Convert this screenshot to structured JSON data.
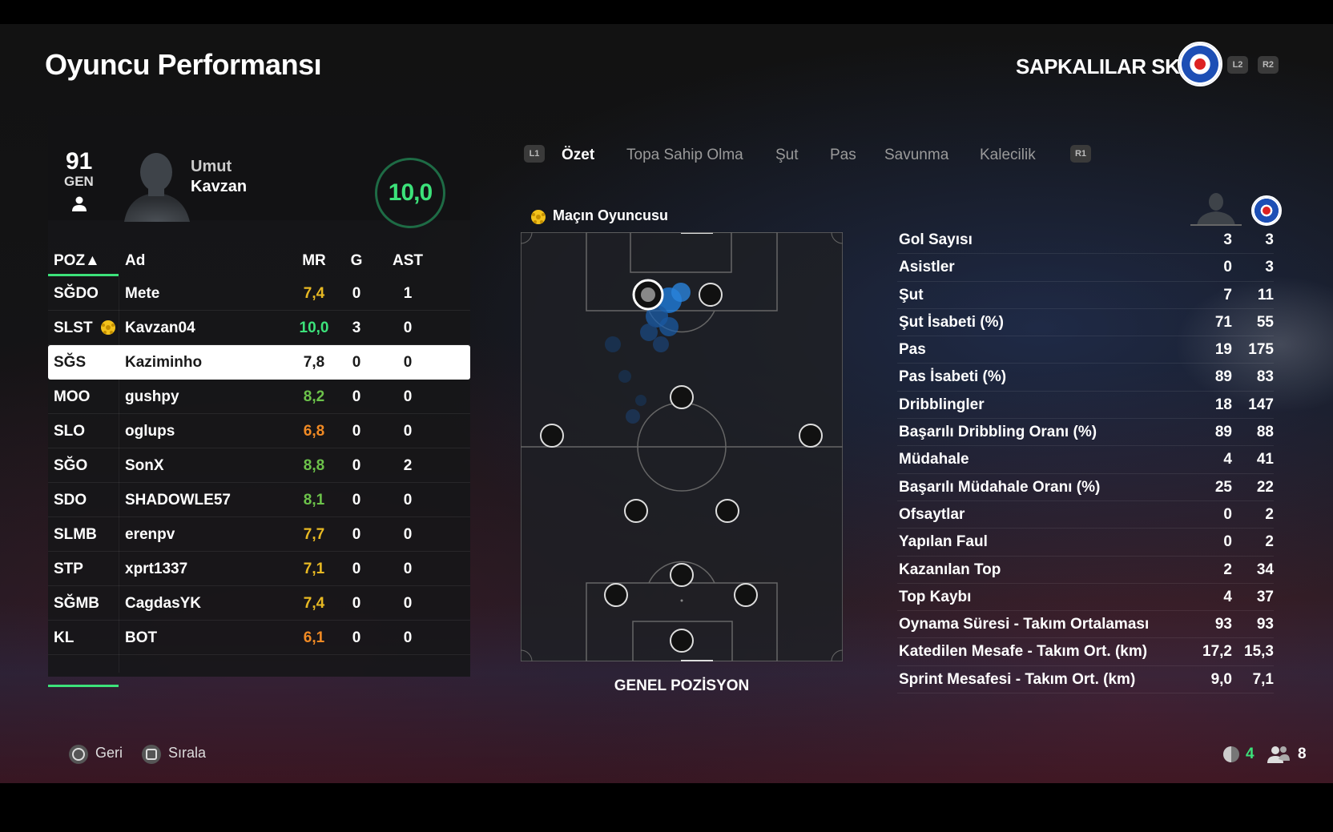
{
  "header": {
    "title": "Oyuncu Performansı",
    "club_name": "SAPKALILAR SK",
    "btn_l2": "L2",
    "btn_r2": "R2"
  },
  "player_card": {
    "gen_value": "91",
    "gen_label": "GEN",
    "first_name": "Umut",
    "last_name": "Kavzan",
    "rating": "10,0"
  },
  "table": {
    "headers": {
      "poz": "POZ▲",
      "ad": "Ad",
      "mr": "MR",
      "g": "G",
      "ast": "AST"
    },
    "rows": [
      {
        "pos": "SĞDO",
        "name": "Mete",
        "mr": "7,4",
        "mr_color": "#e8b923",
        "g": "0",
        "ast": "1",
        "motm": false,
        "selected": false
      },
      {
        "pos": "SLST",
        "name": "Kavzan04",
        "mr": "10,0",
        "mr_color": "#3ce27a",
        "g": "3",
        "ast": "0",
        "motm": true,
        "selected": false
      },
      {
        "pos": "SĞS",
        "name": "Kaziminho",
        "mr": "7,8",
        "mr_color": "#1a1a1a",
        "g": "0",
        "ast": "0",
        "motm": false,
        "selected": true
      },
      {
        "pos": "MOO",
        "name": "gushpy",
        "mr": "8,2",
        "mr_color": "#6cc24a",
        "g": "0",
        "ast": "0",
        "motm": false,
        "selected": false
      },
      {
        "pos": "SLO",
        "name": "oglups",
        "mr": "6,8",
        "mr_color": "#f08a24",
        "g": "0",
        "ast": "0",
        "motm": false,
        "selected": false
      },
      {
        "pos": "SĞO",
        "name": "SonX",
        "mr": "8,8",
        "mr_color": "#6cc24a",
        "g": "0",
        "ast": "2",
        "motm": false,
        "selected": false
      },
      {
        "pos": "SDO",
        "name": "SHADOWLE57",
        "mr": "8,1",
        "mr_color": "#6cc24a",
        "g": "0",
        "ast": "0",
        "motm": false,
        "selected": false
      },
      {
        "pos": "SLMB",
        "name": "erenpv",
        "mr": "7,7",
        "mr_color": "#e8b923",
        "g": "0",
        "ast": "0",
        "motm": false,
        "selected": false
      },
      {
        "pos": "STP",
        "name": "xprt1337",
        "mr": "7,1",
        "mr_color": "#e8b923",
        "g": "0",
        "ast": "0",
        "motm": false,
        "selected": false
      },
      {
        "pos": "SĞMB",
        "name": "CagdasYK",
        "mr": "7,4",
        "mr_color": "#e8b923",
        "g": "0",
        "ast": "0",
        "motm": false,
        "selected": false
      },
      {
        "pos": "KL",
        "name": "BOT",
        "mr": "6,1",
        "mr_color": "#f08a24",
        "g": "0",
        "ast": "0",
        "motm": false,
        "selected": false
      }
    ]
  },
  "tabs": {
    "left_btn": "L1",
    "right_btn": "R1",
    "items": [
      "Özet",
      "Topa Sahip Olma",
      "Şut",
      "Pas",
      "Savunma",
      "Kalecilik"
    ],
    "active_index": 0
  },
  "pitch": {
    "motm_label": "Maçın Oyuncusu",
    "caption": "GENEL POZİSYON"
  },
  "stats": [
    {
      "label": "Gol Sayısı",
      "player": "3",
      "team": "3"
    },
    {
      "label": "Asistler",
      "player": "0",
      "team": "3"
    },
    {
      "label": "Şut",
      "player": "7",
      "team": "11"
    },
    {
      "label": "Şut İsabeti (%)",
      "player": "71",
      "team": "55"
    },
    {
      "label": "Pas",
      "player": "19",
      "team": "175"
    },
    {
      "label": "Pas İsabeti (%)",
      "player": "89",
      "team": "83"
    },
    {
      "label": "Dribblingler",
      "player": "18",
      "team": "147"
    },
    {
      "label": "Başarılı Dribbling Oranı (%)",
      "player": "89",
      "team": "88"
    },
    {
      "label": "Müdahale",
      "player": "4",
      "team": "41"
    },
    {
      "label": "Başarılı Müdahale Oranı (%)",
      "player": "25",
      "team": "22"
    },
    {
      "label": "Ofsaytlar",
      "player": "0",
      "team": "2"
    },
    {
      "label": "Yapılan Faul",
      "player": "0",
      "team": "2"
    },
    {
      "label": "Kazanılan Top",
      "player": "2",
      "team": "34"
    },
    {
      "label": "Top Kaybı",
      "player": "4",
      "team": "37"
    },
    {
      "label": "Oynama Süresi - Takım Ortalaması",
      "player": "93",
      "team": "93"
    },
    {
      "label": "Katedilen Mesafe - Takım Ort. (km)",
      "player": "17,2",
      "team": "15,3"
    },
    {
      "label": "Sprint Mesafesi - Takım Ort. (km)",
      "player": "9,0",
      "team": "7,1"
    }
  ],
  "footer": {
    "back_label": "Geri",
    "sort_label": "Sırala",
    "signal_value": "4",
    "players_value": "8",
    "signal_color": "#3ce27a"
  }
}
